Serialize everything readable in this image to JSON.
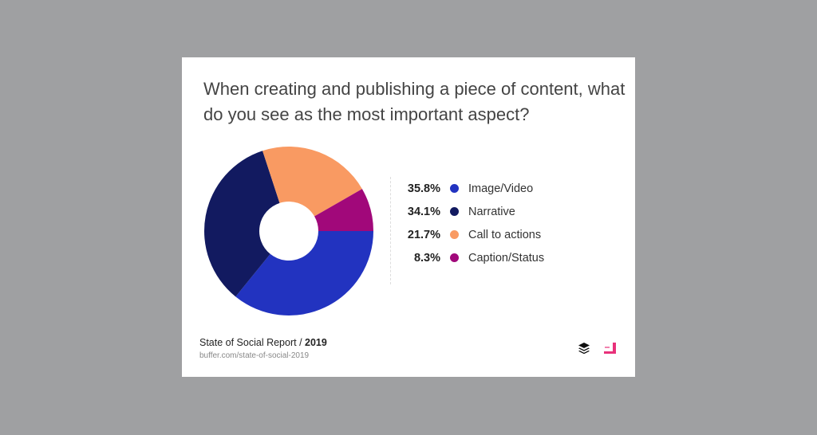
{
  "chart_data": {
    "type": "pie",
    "title": "When creating and publishing a piece of content, what do you see as the most important aspect?",
    "categories": [
      "Image/Video",
      "Narrative",
      "Call to actions",
      "Caption/Status"
    ],
    "values": [
      35.8,
      34.1,
      21.7,
      8.3
    ],
    "labels": [
      "35.8%",
      "34.1%",
      "21.7%",
      "8.3%"
    ],
    "colors": [
      "#2233c0",
      "#121a60",
      "#f99a62",
      "#a1087a"
    ],
    "donut": true,
    "legend": "right"
  },
  "footer": {
    "report": "State of Social Report / ",
    "year": "2019",
    "url": "buffer.com/state-of-social-2019"
  },
  "logos": {
    "buffer": "buffer-logo",
    "second": "brand-logo",
    "accent": "#e8317a"
  }
}
